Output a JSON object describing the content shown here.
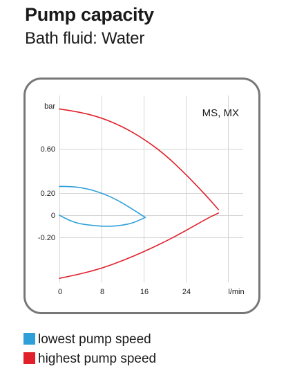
{
  "header": {
    "title": "Pump capacity",
    "subtitle": "Bath fluid: Water"
  },
  "chart_data": {
    "type": "line",
    "tag": "MS, MX",
    "ylabel": "bar",
    "xlabel": "l/min",
    "x_ticks": [
      0,
      8,
      16,
      24
    ],
    "y_ticks": [
      0.6,
      0.2,
      0,
      -0.2
    ],
    "y_tick_labels": [
      "0.60",
      "0.20",
      "0",
      "-0.20"
    ],
    "xlim": [
      0,
      32
    ],
    "ylim": [
      -0.65,
      1.0
    ],
    "grid": true,
    "colors": {
      "lowest": "#2e9fd8",
      "highest": "#e0202a"
    },
    "series": [
      {
        "name": "lowest pump speed",
        "color": "#2e9fd8",
        "x": [
          0,
          2,
          4,
          6,
          8,
          10,
          12,
          14,
          16.3
        ],
        "y": [
          0.26,
          0.26,
          0.25,
          0.23,
          0.2,
          0.16,
          0.11,
          0.05,
          -0.02
        ]
      },
      {
        "name": "lowest pump speed",
        "color": "#2e9fd8",
        "x": [
          0,
          2,
          4,
          6,
          8,
          10,
          12,
          14,
          16.3
        ],
        "y": [
          0.0,
          -0.05,
          -0.08,
          -0.09,
          -0.1,
          -0.1,
          -0.09,
          -0.07,
          -0.02
        ]
      },
      {
        "name": "highest pump speed",
        "color": "#e0202a",
        "x": [
          0,
          4,
          8,
          12,
          16,
          20,
          24,
          28,
          30.2
        ],
        "y": [
          0.96,
          0.93,
          0.88,
          0.8,
          0.69,
          0.55,
          0.37,
          0.17,
          0.05
        ]
      },
      {
        "name": "highest pump speed",
        "color": "#e0202a",
        "x": [
          0,
          4,
          8,
          12,
          16,
          20,
          24,
          28,
          30.2
        ],
        "y": [
          -0.57,
          -0.53,
          -0.48,
          -0.41,
          -0.33,
          -0.24,
          -0.14,
          -0.03,
          0.02
        ]
      }
    ]
  },
  "legend": {
    "lowest": "lowest pump speed",
    "highest": "highest pump speed"
  }
}
